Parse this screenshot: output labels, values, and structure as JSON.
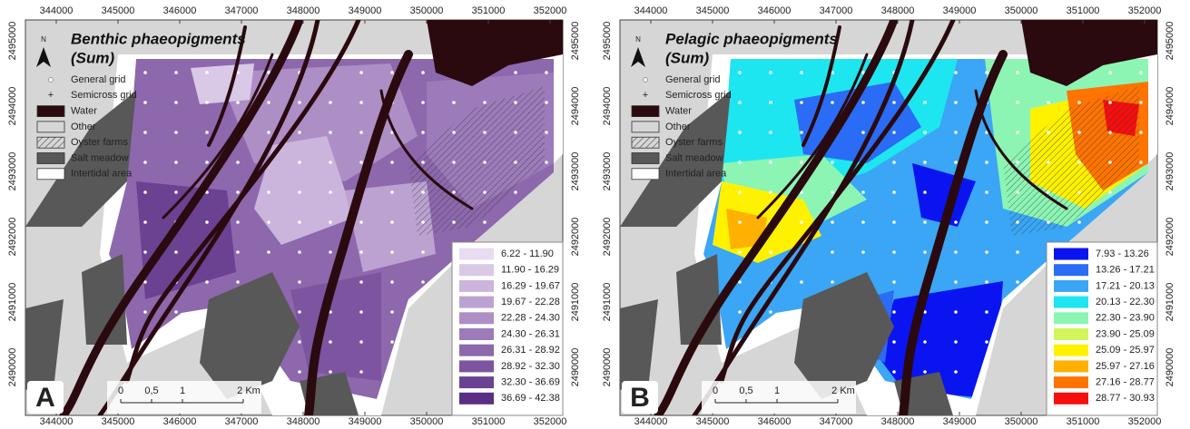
{
  "panels": [
    {
      "letter": "A",
      "title": [
        "Benthic phaeopigments",
        "(Sum)"
      ],
      "north": "N",
      "legend": [
        "General grid",
        "Semicross grid",
        "Water",
        "Other",
        "Oyster farms",
        "Salt meadow",
        "Intertidal area"
      ],
      "scale": [
        "0",
        "0,5",
        "1",
        "2 Km"
      ],
      "classes": [
        {
          "label": "6.22 - 11.90",
          "color": "#e8dcf0"
        },
        {
          "label": "11.90 - 16.29",
          "color": "#d9c8e6"
        },
        {
          "label": "16.29 - 19.67",
          "color": "#cbb5dc"
        },
        {
          "label": "19.67 - 22.28",
          "color": "#bca2d1"
        },
        {
          "label": "22.28 - 24.30",
          "color": "#ad8fc6"
        },
        {
          "label": "24.30 - 26.31",
          "color": "#9d7bba"
        },
        {
          "label": "26.31 - 28.92",
          "color": "#8d68ad"
        },
        {
          "label": "28.92 - 32.30",
          "color": "#7c54a0"
        },
        {
          "label": "32.30 - 36.69",
          "color": "#6b4192"
        },
        {
          "label": "36.69 - 42.38",
          "color": "#5a2e84"
        }
      ]
    },
    {
      "letter": "B",
      "title": [
        "Pelagic phaeopigments",
        "(Sum)"
      ],
      "north": "N",
      "legend": [
        "General grid",
        "Semicross grid",
        "Water",
        "Other",
        "Oyster farms",
        "Salt meadow",
        "Intertidal area"
      ],
      "scale": [
        "0",
        "0,5",
        "1",
        "2 Km"
      ],
      "classes": [
        {
          "label": "7.93 - 13.26",
          "color": "#0a14f0"
        },
        {
          "label": "13.26 - 17.21",
          "color": "#2a6cf5"
        },
        {
          "label": "17.21 - 20.13",
          "color": "#3aa6f5"
        },
        {
          "label": "20.13 - 22.30",
          "color": "#1ee6f0"
        },
        {
          "label": "22.30 - 23.90",
          "color": "#8cf5b4"
        },
        {
          "label": "23.90 - 25.09",
          "color": "#d2f55a"
        },
        {
          "label": "25.09 - 25.97",
          "color": "#fff200"
        },
        {
          "label": "25.97 - 27.16",
          "color": "#ffb000"
        },
        {
          "label": "27.16 - 28.77",
          "color": "#ff7400"
        },
        {
          "label": "28.77 - 30.93",
          "color": "#f50f0f"
        }
      ]
    }
  ],
  "x_labels": [
    "344000",
    "345000",
    "346000",
    "347000",
    "348000",
    "349000",
    "350000",
    "351000",
    "352000"
  ],
  "y_labels": [
    "2495000",
    "2494000",
    "2493000",
    "2492000",
    "2491000",
    "2490000"
  ]
}
